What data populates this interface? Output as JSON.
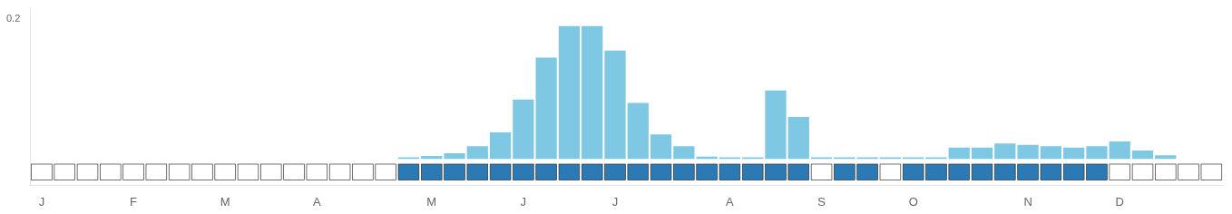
{
  "chart_data": {
    "type": "bar",
    "categories": [
      "J",
      null,
      null,
      null,
      "F",
      null,
      null,
      null,
      "M",
      null,
      null,
      null,
      "A",
      null,
      null,
      null,
      null,
      "M",
      null,
      null,
      null,
      "J",
      null,
      null,
      null,
      "J",
      null,
      null,
      null,
      null,
      "A",
      null,
      null,
      null,
      "S",
      null,
      null,
      null,
      "O",
      null,
      null,
      null,
      null,
      "N",
      null,
      null,
      null,
      "D",
      null,
      null,
      null,
      null
    ],
    "values": [
      0,
      0,
      0,
      0,
      0,
      0,
      0,
      0,
      0,
      0,
      0,
      0,
      0,
      0,
      0,
      0,
      0.002,
      0.004,
      0.008,
      0.018,
      0.038,
      0.085,
      0.145,
      0.19,
      0.19,
      0.155,
      0.08,
      0.035,
      0.018,
      0.003,
      0.002,
      0.002,
      0.098,
      0.06,
      0.002,
      0.002,
      0.002,
      0.002,
      0.002,
      0.002,
      0.016,
      0.016,
      0.022,
      0.02,
      0.018,
      0.016,
      0.018,
      0.025,
      0.012,
      0.005,
      0,
      0
    ],
    "color": "#7ec8e3",
    "indicator": {
      "values": [
        0,
        0,
        0,
        0,
        0,
        0,
        0,
        0,
        0,
        0,
        0,
        0,
        0,
        0,
        0,
        0,
        1,
        1,
        1,
        1,
        1,
        1,
        1,
        1,
        1,
        1,
        1,
        1,
        1,
        1,
        1,
        1,
        1,
        1,
        0,
        1,
        1,
        0,
        1,
        1,
        1,
        1,
        1,
        1,
        1,
        1,
        1,
        0,
        0,
        0,
        0,
        0
      ],
      "colors": [
        "#ffffff",
        "#2b7ab5"
      ]
    },
    "ylim": [
      -0.038,
      0.215
    ],
    "yticks": [
      0.2
    ],
    "grid": false
  }
}
